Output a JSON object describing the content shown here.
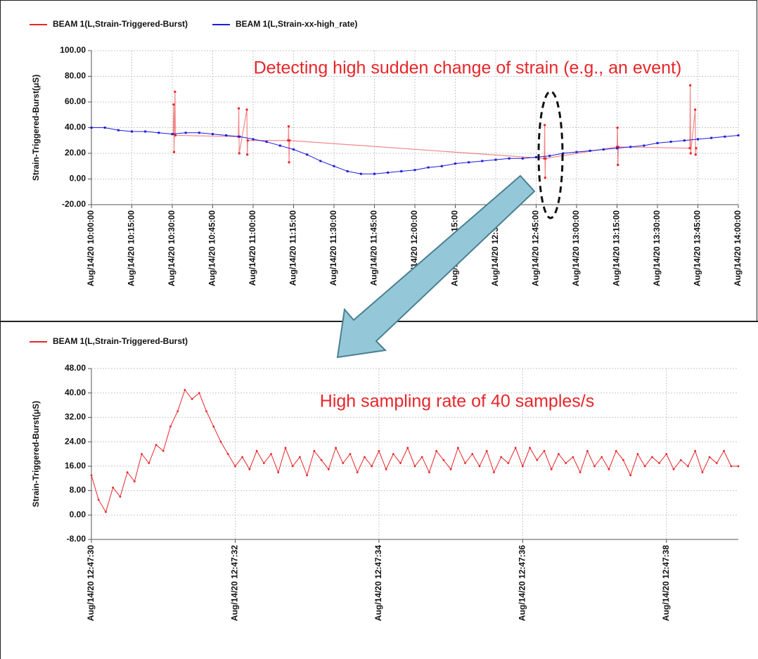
{
  "chart_data": [
    {
      "type": "line",
      "y_label": "Strain-Triggered-Burst(μS)",
      "annotation": "Detecting high sudden change of strain (e.g., an event)",
      "grid": true,
      "xlim": [
        "2020-08-14T10:00:00",
        "2020-08-14T14:00:00"
      ],
      "xticks": [
        {
          "value": "2020-08-14T10:00:00",
          "label": "Aug/14/20 10:00:00"
        },
        {
          "value": "2020-08-14T10:15:00",
          "label": "Aug/14/20 10:15:00"
        },
        {
          "value": "2020-08-14T10:30:00",
          "label": "Aug/14/20 10:30:00"
        },
        {
          "value": "2020-08-14T10:45:00",
          "label": "Aug/14/20 10:45:00"
        },
        {
          "value": "2020-08-14T11:00:00",
          "label": "Aug/14/20 11:00:00"
        },
        {
          "value": "2020-08-14T11:15:00",
          "label": "Aug/14/20 11:15:00"
        },
        {
          "value": "2020-08-14T11:30:00",
          "label": "Aug/14/20 11:30:00"
        },
        {
          "value": "2020-08-14T11:45:00",
          "label": "Aug/14/20 11:45:00"
        },
        {
          "value": "2020-08-14T12:00:00",
          "label": "Aug/14/20 12:00:00"
        },
        {
          "value": "2020-08-14T12:15:00",
          "label": "Aug/14/20 12:15:00"
        },
        {
          "value": "2020-08-14T12:30:00",
          "label": "Aug/14/20 12:30:00"
        },
        {
          "value": "2020-08-14T12:45:00",
          "label": "Aug/14/20 12:45:00"
        },
        {
          "value": "2020-08-14T13:00:00",
          "label": "Aug/14/20 13:00:00"
        },
        {
          "value": "2020-08-14T13:15:00",
          "label": "Aug/14/20 13:15:00"
        },
        {
          "value": "2020-08-14T13:30:00",
          "label": "Aug/14/20 13:30:00"
        },
        {
          "value": "2020-08-14T13:45:00",
          "label": "Aug/14/20 13:45:00"
        },
        {
          "value": "2020-08-14T14:00:00",
          "label": "Aug/14/20 14:00:00"
        }
      ],
      "ylim": [
        -20,
        100
      ],
      "yticks": [
        {
          "value": -20,
          "label": "-20.00"
        },
        {
          "value": 0,
          "label": "0.00"
        },
        {
          "value": 20,
          "label": "20.00"
        },
        {
          "value": 40,
          "label": "40.00"
        },
        {
          "value": 60,
          "label": "60.00"
        },
        {
          "value": 80,
          "label": "80.00"
        },
        {
          "value": 100,
          "label": "100.00"
        }
      ],
      "series": [
        {
          "name": "BEAM 1(L,Strain-Triggered-Burst)",
          "color": "#e8262a",
          "x": [
            "2020-08-14T10:30:20",
            "2020-08-14T10:30:30",
            "2020-08-14T10:30:40",
            "2020-08-14T10:31:00",
            "2020-08-14T10:31:10",
            "2020-08-14T10:54:30",
            "2020-08-14T10:54:40",
            "2020-08-14T10:54:50",
            "2020-08-14T10:57:40",
            "2020-08-14T10:57:50",
            "2020-08-14T10:58:00",
            "2020-08-14T11:13:00",
            "2020-08-14T11:13:10",
            "2020-08-14T11:13:20",
            "2020-08-14T11:13:30",
            "2020-08-14T12:48:00",
            "2020-08-14T12:48:10",
            "2020-08-14T12:48:20",
            "2020-08-14T12:48:30",
            "2020-08-14T13:15:00",
            "2020-08-14T13:15:10",
            "2020-08-14T13:15:20",
            "2020-08-14T13:15:30",
            "2020-08-14T13:42:00",
            "2020-08-14T13:42:10",
            "2020-08-14T13:42:20",
            "2020-08-14T13:44:00",
            "2020-08-14T13:44:10",
            "2020-08-14T13:44:20"
          ],
          "values": [
            35,
            58,
            21,
            68,
            34,
            33,
            55,
            20,
            54,
            19,
            30,
            30,
            41,
            13,
            30,
            16,
            42,
            1,
            16,
            25,
            40,
            11,
            25,
            24,
            73,
            20,
            54,
            19,
            24
          ]
        },
        {
          "name": "BEAM 1(L,Strain-xx-high_rate)",
          "color": "#1c1ce0",
          "x": [
            "2020-08-14T10:00:00",
            "2020-08-14T10:05:00",
            "2020-08-14T10:10:00",
            "2020-08-14T10:15:00",
            "2020-08-14T10:20:00",
            "2020-08-14T10:25:00",
            "2020-08-14T10:30:00",
            "2020-08-14T10:35:00",
            "2020-08-14T10:40:00",
            "2020-08-14T10:45:00",
            "2020-08-14T10:50:00",
            "2020-08-14T10:55:00",
            "2020-08-14T11:00:00",
            "2020-08-14T11:05:00",
            "2020-08-14T11:10:00",
            "2020-08-14T11:15:00",
            "2020-08-14T11:20:00",
            "2020-08-14T11:25:00",
            "2020-08-14T11:30:00",
            "2020-08-14T11:35:00",
            "2020-08-14T11:40:00",
            "2020-08-14T11:45:00",
            "2020-08-14T11:50:00",
            "2020-08-14T11:55:00",
            "2020-08-14T12:00:00",
            "2020-08-14T12:05:00",
            "2020-08-14T12:10:00",
            "2020-08-14T12:15:00",
            "2020-08-14T12:20:00",
            "2020-08-14T12:25:00",
            "2020-08-14T12:30:00",
            "2020-08-14T12:35:00",
            "2020-08-14T12:40:00",
            "2020-08-14T12:45:00",
            "2020-08-14T12:50:00",
            "2020-08-14T12:55:00",
            "2020-08-14T13:00:00",
            "2020-08-14T13:05:00",
            "2020-08-14T13:10:00",
            "2020-08-14T13:15:00",
            "2020-08-14T13:20:00",
            "2020-08-14T13:25:00",
            "2020-08-14T13:30:00",
            "2020-08-14T13:35:00",
            "2020-08-14T13:40:00",
            "2020-08-14T13:45:00",
            "2020-08-14T13:50:00",
            "2020-08-14T13:55:00",
            "2020-08-14T14:00:00"
          ],
          "values": [
            40,
            40,
            38,
            37,
            37,
            36,
            35,
            36,
            36,
            35,
            34,
            33,
            31,
            29,
            26,
            23,
            19,
            14,
            10,
            6,
            4,
            4,
            5,
            6,
            7,
            9,
            10,
            12,
            13,
            14,
            15,
            16,
            16,
            17,
            18,
            20,
            21,
            22,
            23,
            24,
            25,
            26,
            28,
            29,
            30,
            31,
            32,
            33,
            34
          ]
        }
      ]
    },
    {
      "type": "line",
      "y_label": "Strain-Triggered-Burst(μS)",
      "annotation": "High sampling rate of 40 samples/s",
      "grid": true,
      "xlim": [
        "2020-08-14T12:47:30.000",
        "2020-08-14T12:47:39.000"
      ],
      "xticks": [
        {
          "value": "2020-08-14T12:47:30.000",
          "label": "Aug/14/20 12:47:30"
        },
        {
          "value": "2020-08-14T12:47:32.000",
          "label": "Aug/14/20 12:47:32"
        },
        {
          "value": "2020-08-14T12:47:34.000",
          "label": "Aug/14/20 12:47:34"
        },
        {
          "value": "2020-08-14T12:47:36.000",
          "label": "Aug/14/20 12:47:36"
        },
        {
          "value": "2020-08-14T12:47:38.000",
          "label": "Aug/14/20 12:47:38"
        }
      ],
      "ylim": [
        -8,
        48
      ],
      "yticks": [
        {
          "value": -8,
          "label": "-8.00"
        },
        {
          "value": 0,
          "label": "0.00"
        },
        {
          "value": 8,
          "label": "8.00"
        },
        {
          "value": 16,
          "label": "16.00"
        },
        {
          "value": 24,
          "label": "24.00"
        },
        {
          "value": 32,
          "label": "32.00"
        },
        {
          "value": 40,
          "label": "40.00"
        },
        {
          "value": 48,
          "label": "48.00"
        }
      ],
      "series": [
        {
          "name": "BEAM 1(L,Strain-Triggered-Burst)",
          "color": "#e8262a",
          "x": [
            "2020-08-14T12:47:30.000",
            "2020-08-14T12:47:30.100",
            "2020-08-14T12:47:30.200",
            "2020-08-14T12:47:30.300",
            "2020-08-14T12:47:30.400",
            "2020-08-14T12:47:30.500",
            "2020-08-14T12:47:30.600",
            "2020-08-14T12:47:30.700",
            "2020-08-14T12:47:30.800",
            "2020-08-14T12:47:30.900",
            "2020-08-14T12:47:31.000",
            "2020-08-14T12:47:31.100",
            "2020-08-14T12:47:31.200",
            "2020-08-14T12:47:31.300",
            "2020-08-14T12:47:31.400",
            "2020-08-14T12:47:31.500",
            "2020-08-14T12:47:31.600",
            "2020-08-14T12:47:31.700",
            "2020-08-14T12:47:31.800",
            "2020-08-14T12:47:31.900",
            "2020-08-14T12:47:32.000",
            "2020-08-14T12:47:32.100",
            "2020-08-14T12:47:32.200",
            "2020-08-14T12:47:32.300",
            "2020-08-14T12:47:32.400",
            "2020-08-14T12:47:32.500",
            "2020-08-14T12:47:32.600",
            "2020-08-14T12:47:32.700",
            "2020-08-14T12:47:32.800",
            "2020-08-14T12:47:32.900",
            "2020-08-14T12:47:33.000",
            "2020-08-14T12:47:33.100",
            "2020-08-14T12:47:33.200",
            "2020-08-14T12:47:33.300",
            "2020-08-14T12:47:33.400",
            "2020-08-14T12:47:33.500",
            "2020-08-14T12:47:33.600",
            "2020-08-14T12:47:33.700",
            "2020-08-14T12:47:33.800",
            "2020-08-14T12:47:33.900",
            "2020-08-14T12:47:34.000",
            "2020-08-14T12:47:34.100",
            "2020-08-14T12:47:34.200",
            "2020-08-14T12:47:34.300",
            "2020-08-14T12:47:34.400",
            "2020-08-14T12:47:34.500",
            "2020-08-14T12:47:34.600",
            "2020-08-14T12:47:34.700",
            "2020-08-14T12:47:34.800",
            "2020-08-14T12:47:34.900",
            "2020-08-14T12:47:35.000",
            "2020-08-14T12:47:35.100",
            "2020-08-14T12:47:35.200",
            "2020-08-14T12:47:35.300",
            "2020-08-14T12:47:35.400",
            "2020-08-14T12:47:35.500",
            "2020-08-14T12:47:35.600",
            "2020-08-14T12:47:35.700",
            "2020-08-14T12:47:35.800",
            "2020-08-14T12:47:35.900",
            "2020-08-14T12:47:36.000",
            "2020-08-14T12:47:36.100",
            "2020-08-14T12:47:36.200",
            "2020-08-14T12:47:36.300",
            "2020-08-14T12:47:36.400",
            "2020-08-14T12:47:36.500",
            "2020-08-14T12:47:36.600",
            "2020-08-14T12:47:36.700",
            "2020-08-14T12:47:36.800",
            "2020-08-14T12:47:36.900",
            "2020-08-14T12:47:37.000",
            "2020-08-14T12:47:37.100",
            "2020-08-14T12:47:37.200",
            "2020-08-14T12:47:37.300",
            "2020-08-14T12:47:37.400",
            "2020-08-14T12:47:37.500",
            "2020-08-14T12:47:37.600",
            "2020-08-14T12:47:37.700",
            "2020-08-14T12:47:37.800",
            "2020-08-14T12:47:37.900",
            "2020-08-14T12:47:38.000",
            "2020-08-14T12:47:38.100",
            "2020-08-14T12:47:38.200",
            "2020-08-14T12:47:38.300",
            "2020-08-14T12:47:38.400",
            "2020-08-14T12:47:38.500",
            "2020-08-14T12:47:38.600",
            "2020-08-14T12:47:38.700",
            "2020-08-14T12:47:38.800",
            "2020-08-14T12:47:38.900",
            "2020-08-14T12:47:39.000"
          ],
          "values": [
            13,
            5,
            1,
            9,
            6,
            14,
            11,
            20,
            17,
            23,
            21,
            29,
            34,
            41,
            38,
            40,
            34,
            29,
            24,
            20,
            16,
            19,
            15,
            21,
            17,
            20,
            14,
            22,
            16,
            19,
            13,
            21,
            18,
            15,
            22,
            17,
            20,
            14,
            19,
            16,
            21,
            15,
            20,
            17,
            22,
            16,
            19,
            14,
            21,
            18,
            15,
            22,
            17,
            20,
            16,
            21,
            14,
            19,
            17,
            22,
            16,
            22,
            18,
            21,
            15,
            20,
            17,
            19,
            14,
            21,
            16,
            19,
            15,
            21,
            18,
            13,
            20,
            16,
            19,
            17,
            20,
            15,
            18,
            16,
            21,
            14,
            19,
            17,
            21,
            16,
            16
          ]
        }
      ]
    }
  ]
}
